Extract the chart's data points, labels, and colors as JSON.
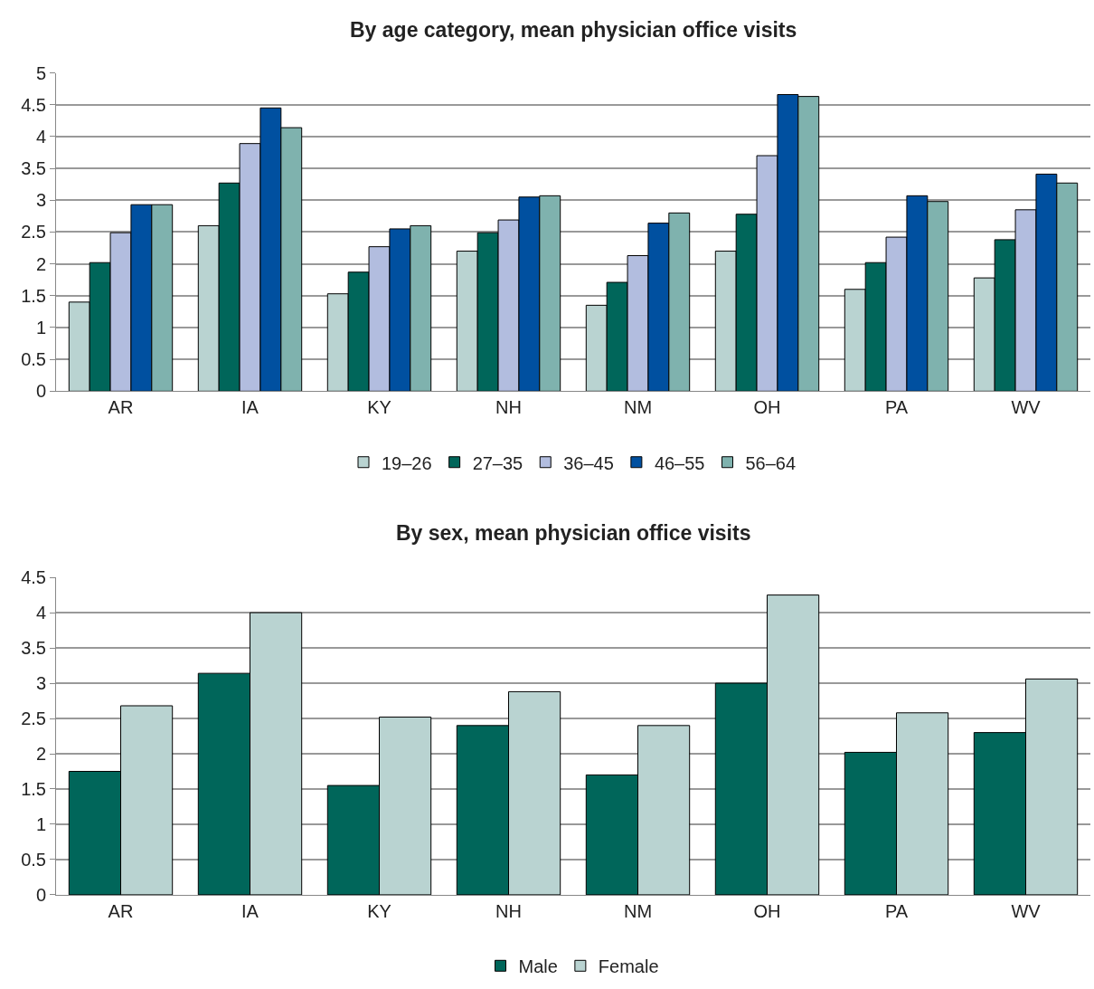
{
  "chart_data": [
    {
      "type": "bar",
      "title": "By age category, mean physician office visits",
      "categories": [
        "AR",
        "IA",
        "KY",
        "NH",
        "NM",
        "OH",
        "PA",
        "WV"
      ],
      "series": [
        {
          "name": "19–26",
          "color": "#b9d3d1",
          "values": [
            1.4,
            2.6,
            1.53,
            2.2,
            1.35,
            2.2,
            1.6,
            1.78
          ]
        },
        {
          "name": "27–35",
          "color": "#00665a",
          "values": [
            2.02,
            3.27,
            1.87,
            2.49,
            1.71,
            2.78,
            2.02,
            2.38
          ]
        },
        {
          "name": "36–45",
          "color": "#b2bddf",
          "values": [
            2.49,
            3.89,
            2.27,
            2.69,
            2.13,
            3.7,
            2.42,
            2.85
          ]
        },
        {
          "name": "46–55",
          "color": "#0050a0",
          "values": [
            2.93,
            4.45,
            2.55,
            3.05,
            2.64,
            4.66,
            3.07,
            3.41
          ]
        },
        {
          "name": "56–64",
          "color": "#7fb2ae",
          "values": [
            2.93,
            4.14,
            2.6,
            3.07,
            2.8,
            4.63,
            2.98,
            3.27
          ]
        }
      ],
      "ylim": [
        0,
        5
      ],
      "yticks": [
        0,
        0.5,
        1,
        1.5,
        2,
        2.5,
        3,
        3.5,
        4,
        4.5,
        5
      ],
      "grid": "y",
      "legend": "bottom"
    },
    {
      "type": "bar",
      "title": "By sex, mean physician office visits",
      "categories": [
        "AR",
        "IA",
        "KY",
        "NH",
        "NM",
        "OH",
        "PA",
        "WV"
      ],
      "series": [
        {
          "name": "Male",
          "color": "#00665a",
          "values": [
            1.75,
            3.14,
            1.55,
            2.4,
            1.7,
            3.0,
            2.02,
            2.3
          ]
        },
        {
          "name": "Female",
          "color": "#b9d3d1",
          "values": [
            2.68,
            4.0,
            2.52,
            2.88,
            2.4,
            4.25,
            2.58,
            3.06
          ]
        }
      ],
      "ylim": [
        0,
        4.5
      ],
      "yticks": [
        0,
        0.5,
        1,
        1.5,
        2,
        2.5,
        3,
        3.5,
        4,
        4.5
      ],
      "grid": "y",
      "legend": "bottom"
    }
  ]
}
